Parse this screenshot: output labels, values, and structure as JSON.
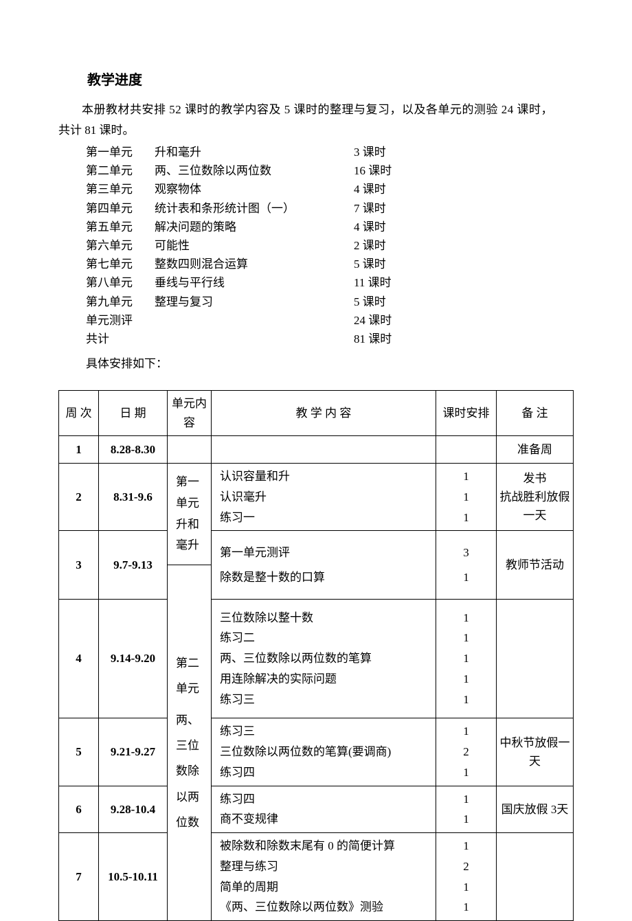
{
  "title": "教学进度",
  "intro": "本册教材共安排 52 课时的教学内容及 5 课时的整理与复习，以及各单元的测验 24 课时，",
  "intro_sub": "共计 81 课时。",
  "units": [
    {
      "name": "第一单元",
      "topic": "升和毫升",
      "hours": "3 课时"
    },
    {
      "name": "第二单元",
      "topic": "两、三位数除以两位数",
      "hours": "16 课时"
    },
    {
      "name": "第三单元",
      "topic": "观察物体",
      "hours": "4 课时"
    },
    {
      "name": "第四单元",
      "topic": "统计表和条形统计图（一）",
      "hours": "7 课时"
    },
    {
      "name": "第五单元",
      "topic": "解决问题的策略",
      "hours": "4 课时"
    },
    {
      "name": "第六单元",
      "topic": "可能性",
      "hours": "2 课时"
    },
    {
      "name": "第七单元",
      "topic": "整数四则混合运算",
      "hours": "5 课时"
    },
    {
      "name": "第八单元",
      "topic": "垂线与平行线",
      "hours": "11 课时"
    },
    {
      "name": "第九单元",
      "topic": "整理与复习",
      "hours": "5 课时"
    },
    {
      "name": "单元测评",
      "topic": "",
      "hours": "24 课时"
    },
    {
      "name": "共计",
      "topic": "",
      "hours": "81 课时"
    }
  ],
  "sub_intro": "具体安排如下：",
  "table": {
    "headers": {
      "week": "周 次",
      "date": "日 期",
      "unit": "单元内容",
      "content": "教 学 内 容",
      "hours": "课时安排",
      "note": "备 注"
    },
    "unit1_label": "第一单元升和毫升",
    "unit2_label": "第二单元",
    "unit2_sub": "两、三位数除以两位数",
    "rows": {
      "w1": {
        "week": "1",
        "date": "8.28-8.30",
        "note": "准备周"
      },
      "w2": {
        "week": "2",
        "date": "8.31-9.6",
        "content": "认识容量和升\n认识毫升\n练习一",
        "hours": "1\n1\n1",
        "note": "发书\n抗战胜利放假一天"
      },
      "w3": {
        "week": "3",
        "date": "9.7-9.13",
        "content1": "第一单元测评",
        "hours1": "3",
        "content2": "除数是整十数的口算",
        "hours2": "1",
        "note": "教师节活动"
      },
      "w4": {
        "week": "4",
        "date": "9.14-9.20",
        "content": "三位数除以整十数\n练习二\n两、三位数除以两位数的笔算\n用连除解决的实际问题\n练习三",
        "hours": "1\n1\n1\n1\n1"
      },
      "w5": {
        "week": "5",
        "date": "9.21-9.27",
        "content": "练习三\n三位数除以两位数的笔算(要调商)\n练习四",
        "hours": "1\n2\n1",
        "note": "中秋节放假一天"
      },
      "w6": {
        "week": "6",
        "date": "9.28-10.4",
        "content": "练习四\n商不变规律",
        "hours": "1\n1",
        "note": "国庆放假 3天"
      },
      "w7": {
        "week": "7",
        "date": "10.5-10.11",
        "content": "被除数和除数末尾有 0 的简便计算\n整理与练习\n简单的周期\n《两、三位数除以两位数》测验",
        "hours": "1\n2\n1\n1"
      }
    }
  }
}
